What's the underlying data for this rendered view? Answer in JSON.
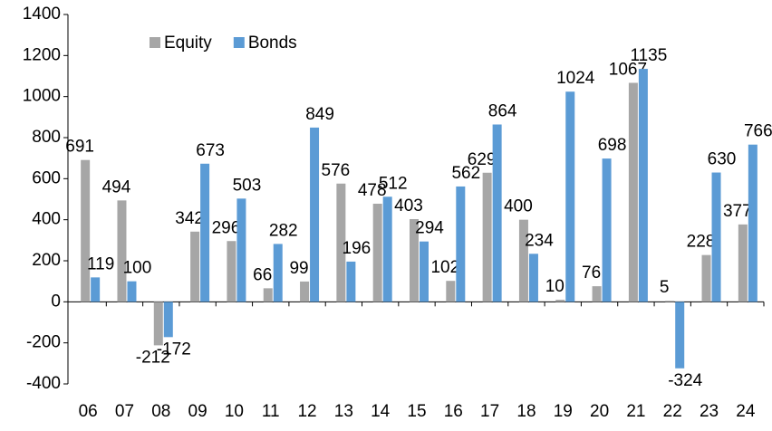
{
  "chart_data": {
    "type": "bar",
    "categories": [
      "06",
      "07",
      "08",
      "09",
      "10",
      "11",
      "12",
      "13",
      "14",
      "15",
      "16",
      "17",
      "18",
      "19",
      "20",
      "21",
      "22",
      "23",
      "24"
    ],
    "series": [
      {
        "name": "Equity",
        "color": "#a6a6a6",
        "values": [
          691,
          494,
          -212,
          342,
          296,
          66,
          99,
          576,
          478,
          403,
          102,
          629,
          400,
          10,
          76,
          1067,
          5,
          228,
          377
        ]
      },
      {
        "name": "Bonds",
        "color": "#5b9bd5",
        "values": [
          119,
          100,
          -172,
          673,
          503,
          282,
          849,
          196,
          512,
          294,
          562,
          864,
          234,
          1024,
          698,
          1135,
          -324,
          630,
          766
        ]
      }
    ],
    "ylim": [
      -400,
      1400
    ],
    "yticks": [
      -400,
      -200,
      0,
      200,
      400,
      600,
      800,
      1000,
      1200,
      1400
    ],
    "legend": "top-left"
  }
}
